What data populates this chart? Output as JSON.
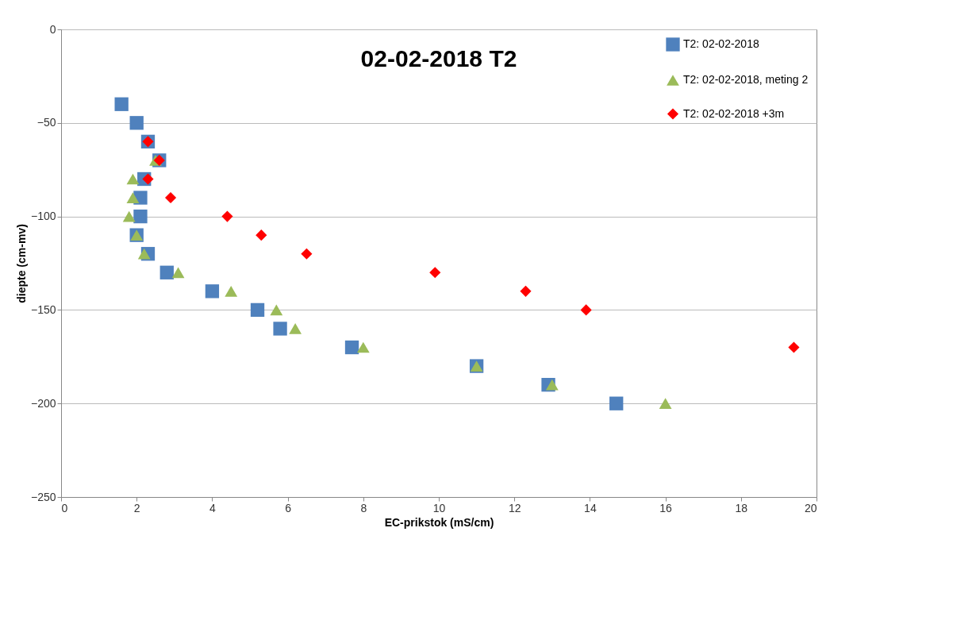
{
  "chart_data": {
    "type": "scatter",
    "title": "02-02-2018  T2",
    "xlabel": "EC-prikstok (mS/cm)",
    "ylabel": "diepte (cm-mv)",
    "xlim": [
      0,
      20
    ],
    "xticks": [
      0,
      2,
      4,
      6,
      8,
      10,
      12,
      14,
      16,
      18,
      20
    ],
    "ylim": [
      -250,
      0
    ],
    "yticks": [
      -250,
      -200,
      -150,
      -100,
      -50,
      0
    ],
    "grid": "y",
    "legend": "top right",
    "series": [
      {
        "name": "T2: 02-02-2018",
        "color": "#4f81bd",
        "marker": "square",
        "x": [
          1.6,
          2.0,
          2.3,
          2.6,
          2.2,
          2.1,
          2.1,
          2.0,
          2.3,
          2.8,
          4.0,
          5.2,
          5.8,
          7.7,
          11.0,
          12.9,
          14.7
        ],
        "values": [
          -40,
          -50,
          -60,
          -70,
          -80,
          -90,
          -100,
          -110,
          -120,
          -130,
          -140,
          -150,
          -160,
          -170,
          -180,
          -190,
          -200
        ]
      },
      {
        "name": "T2: 02-02-2018, meting 2",
        "color": "#9bbb59",
        "marker": "triangle",
        "x": [
          2.5,
          1.9,
          1.9,
          1.8,
          2.0,
          2.2,
          3.1,
          4.5,
          5.7,
          6.2,
          8.0,
          11.0,
          13.0,
          16.0
        ],
        "values": [
          -70,
          -80,
          -90,
          -100,
          -110,
          -120,
          -130,
          -140,
          -150,
          -160,
          -170,
          -180,
          -190,
          -200
        ]
      },
      {
        "name": "T2: 02-02-2018 +3m",
        "color": "#ff0000",
        "marker": "diamond",
        "x": [
          2.3,
          2.6,
          2.3,
          2.9,
          4.4,
          5.3,
          6.5,
          9.9,
          12.3,
          13.9,
          19.4
        ],
        "values": [
          -60,
          -70,
          -80,
          -90,
          -100,
          -110,
          -120,
          -130,
          -140,
          -150,
          -170
        ]
      }
    ]
  }
}
